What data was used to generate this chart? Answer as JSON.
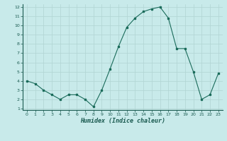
{
  "x": [
    0,
    1,
    2,
    3,
    4,
    5,
    6,
    7,
    8,
    9,
    10,
    11,
    12,
    13,
    14,
    15,
    16,
    17,
    18,
    19,
    20,
    21,
    22,
    23
  ],
  "y": [
    4.0,
    3.7,
    3.0,
    2.5,
    2.0,
    2.5,
    2.5,
    2.0,
    1.2,
    3.0,
    5.3,
    7.7,
    9.8,
    10.8,
    11.5,
    11.8,
    12.0,
    10.8,
    7.5,
    7.5,
    5.0,
    2.0,
    2.5,
    4.8
  ],
  "xlabel": "Humidex (Indice chaleur)",
  "ylim": [
    1,
    12
  ],
  "xlim": [
    -0.5,
    23.5
  ],
  "yticks": [
    1,
    2,
    3,
    4,
    5,
    6,
    7,
    8,
    9,
    10,
    11,
    12
  ],
  "xticks": [
    0,
    1,
    2,
    3,
    4,
    5,
    6,
    7,
    8,
    9,
    10,
    11,
    12,
    13,
    14,
    15,
    16,
    17,
    18,
    19,
    20,
    21,
    22,
    23
  ],
  "line_color": "#1a6b5a",
  "marker_color": "#1a6b5a",
  "bg_color": "#c8eaea",
  "grid_color": "#b0d4d2",
  "title": ""
}
